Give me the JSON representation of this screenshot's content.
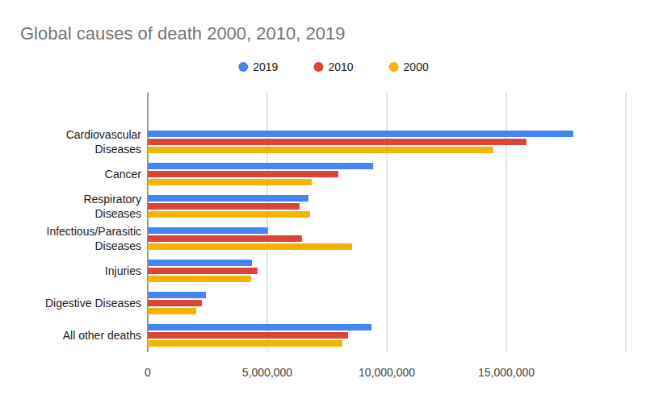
{
  "chart_data": {
    "type": "bar",
    "orientation": "horizontal",
    "title": "Global causes of death 2000, 2010, 2019",
    "categories": [
      "Cardiovascular Diseases",
      "Cancer",
      "Respiratory Diseases",
      "Infectious/Parasitic Diseases",
      "Injuries",
      "Digestive Diseases",
      "All other deaths"
    ],
    "series": [
      {
        "name": "2019",
        "color": "#4285f4",
        "values": [
          17800000,
          9430000,
          6720000,
          5030000,
          4360000,
          2430000,
          9360000
        ]
      },
      {
        "name": "2010",
        "color": "#db4437",
        "values": [
          15840000,
          7970000,
          6350000,
          6450000,
          4590000,
          2260000,
          8380000
        ]
      },
      {
        "name": "2000",
        "color": "#f4b400",
        "values": [
          14450000,
          6860000,
          6790000,
          8550000,
          4320000,
          2030000,
          8140000
        ]
      }
    ],
    "xlim": [
      0,
      20000000
    ],
    "xticks": [
      0,
      {
        "value": 5000000,
        "label": "5,000,000"
      },
      {
        "value": 10000000,
        "label": "10,000,000"
      },
      {
        "value": 15000000,
        "label": "15,000,000"
      }
    ],
    "grid": true,
    "legend": "top"
  }
}
